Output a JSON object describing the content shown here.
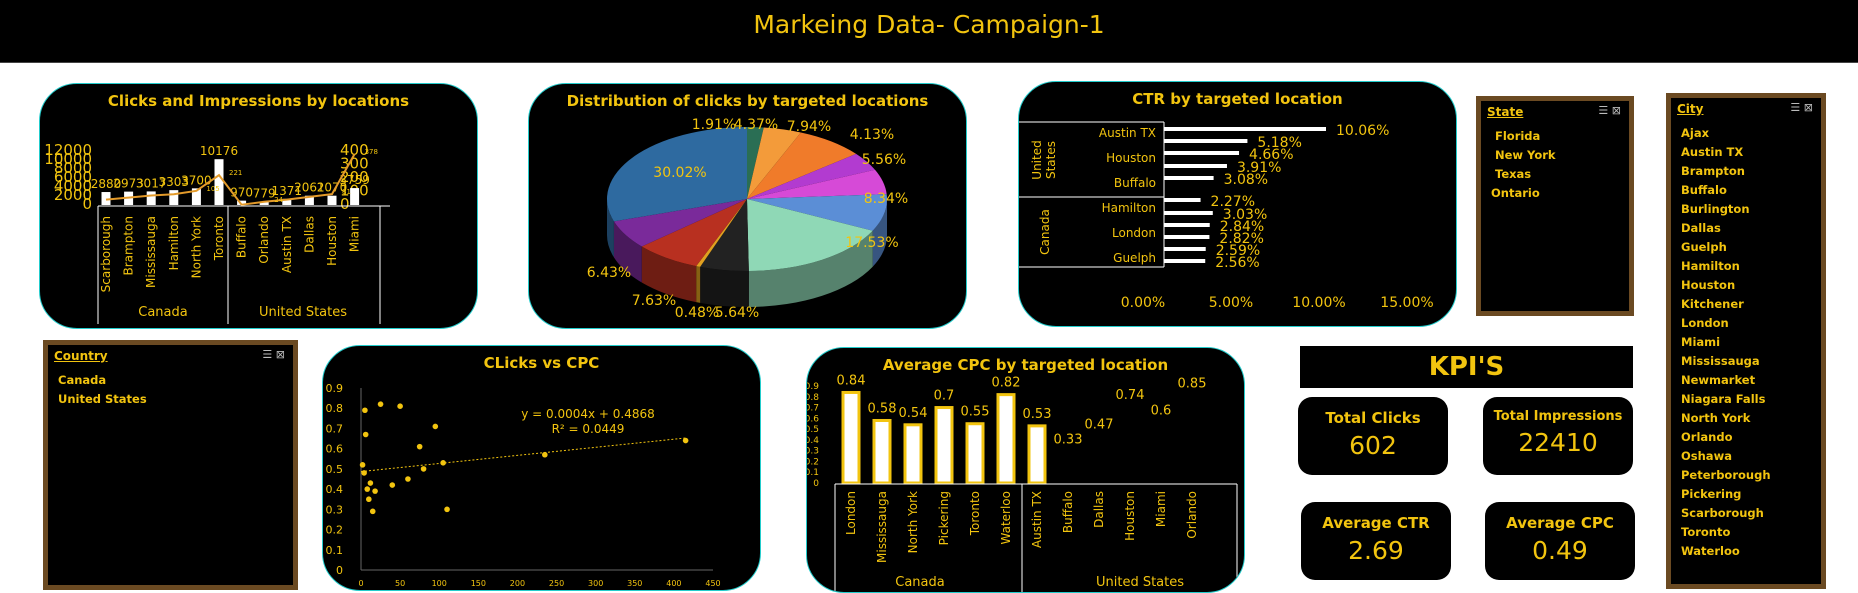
{
  "header": {
    "title": "Markeing Data- Campaign-1"
  },
  "colors": {
    "accent": "#f2c40f",
    "panel": "#000000",
    "border": "#22cccc",
    "slicer_border": "#6b4a22"
  },
  "chart1": {
    "title": "Clicks and Impressions by locations",
    "left_axis_ticks": [
      "12000",
      "10000",
      "8000",
      "6000",
      "4000",
      "2000",
      "0"
    ],
    "right_axis_ticks": [
      "400",
      "300",
      "200",
      "100",
      "0"
    ],
    "groups": [
      "Canada",
      "United States"
    ],
    "bar_labels": [
      "2880",
      "2973",
      "3017",
      "3303",
      "3700",
      "10176",
      "970",
      "779",
      "1371",
      "2061",
      "2070",
      "3759"
    ],
    "line_labels": [
      "221",
      "378",
      "105",
      "81",
      "24"
    ]
  },
  "chart2": {
    "title": "Distribution of clicks by targeted locations",
    "labels": [
      "1.91%",
      "4.37%",
      "7.94%",
      "4.13%",
      "5.56%",
      "8.34%",
      "17.53%",
      "5.64%",
      "0.48%",
      "7.63%",
      "6.43%",
      "30.02%"
    ]
  },
  "chart3": {
    "title": "CTR by targeted location",
    "groups": [
      "United States",
      "Canada"
    ],
    "x_ticks": [
      "0.00%",
      "5.00%",
      "10.00%",
      "15.00%"
    ],
    "data_labels": [
      "10.06%",
      "5.18%",
      "4.66%",
      "3.91%",
      "3.08%",
      "2.27%",
      "3.03%",
      "2.84%",
      "2.82%",
      "2.59%",
      "2.56%"
    ]
  },
  "chart4": {
    "title": "CLicks vs CPC",
    "y_ticks": [
      "0.9",
      "0.8",
      "0.7",
      "0.6",
      "0.5",
      "0.4",
      "0.3",
      "0.2",
      "0.1",
      "0"
    ],
    "x_ticks": [
      "0",
      "50",
      "100",
      "150",
      "200",
      "250",
      "300",
      "350",
      "400",
      "450"
    ],
    "equation": "y = 0.0004x + 0.4868",
    "r_squared": "R² = 0.0449"
  },
  "chart5": {
    "title": "Average CPC by targeted location",
    "y_ticks": [
      "0.9",
      "0.8",
      "0.7",
      "0.6",
      "0.5",
      "0.4",
      "0.3",
      "0.2",
      "0.1",
      "0"
    ],
    "groups": [
      "Canada",
      "United States"
    ],
    "data_labels": [
      "0.84",
      "0.58",
      "0.54",
      "0.7",
      "0.55",
      "0.82",
      "0.53",
      "0.33",
      "0.47",
      "0.74",
      "0.6",
      "0.85"
    ]
  },
  "chart_data": [
    {
      "type": "bar",
      "title": "Clicks and Impressions by locations",
      "categories": [
        "Scarborough",
        "Brampton",
        "Mississauga",
        "Hamilton",
        "North York",
        "Toronto",
        "Buffalo",
        "Orlando",
        "Austin TX",
        "Dallas",
        "Houston",
        "Miami"
      ],
      "groups": [
        {
          "name": "Canada",
          "count": 6
        },
        {
          "name": "United States",
          "count": 6
        }
      ],
      "series": [
        {
          "values": [
            2880,
            2973,
            3017,
            3303,
            3700,
            10176,
            970,
            779,
            1371,
            2061,
            2070,
            3759
          ],
          "axis": "left"
        },
        {
          "values": [
            40,
            55,
            70,
            80,
            105,
            221,
            2,
            24,
            40,
            60,
            81,
            378
          ],
          "axis": "right",
          "kind": "line"
        }
      ],
      "ylim_left": [
        0,
        12000
      ],
      "ylim_right": [
        0,
        400
      ]
    },
    {
      "type": "pie",
      "title": "Distribution of clicks by targeted locations",
      "values": [
        1.91,
        4.37,
        7.94,
        4.13,
        5.56,
        8.34,
        17.53,
        5.64,
        0.48,
        7.63,
        6.43,
        30.02
      ],
      "colors": [
        "#2a6e54",
        "#f39b3a",
        "#f07b2a",
        "#b23bd0",
        "#d64ad7",
        "#5b8ed6",
        "#8fd8b6",
        "#222222",
        "#e0a020",
        "#b83020",
        "#7a2a9a",
        "#2e6aa0"
      ]
    },
    {
      "type": "bar",
      "orientation": "horizontal",
      "title": "CTR by targeted location",
      "categories": [
        "Austin TX",
        "",
        "Houston",
        "",
        "Buffalo",
        "Hamilton",
        "",
        "London",
        "",
        "Guelph",
        ""
      ],
      "values": [
        10.06,
        5.18,
        4.66,
        3.91,
        3.08,
        2.27,
        3.03,
        2.84,
        2.82,
        2.59,
        2.56
      ],
      "groups": [
        {
          "name": "United States",
          "count": 5
        },
        {
          "name": "Canada",
          "count": 6
        }
      ],
      "xlim": [
        0,
        15
      ]
    },
    {
      "type": "scatter",
      "title": "CLicks vs CPC",
      "x": [
        2,
        4,
        5,
        6,
        8,
        10,
        12,
        15,
        18,
        25,
        40,
        50,
        60,
        75,
        80,
        95,
        105,
        110,
        235,
        415
      ],
      "y": [
        0.52,
        0.48,
        0.79,
        0.67,
        0.4,
        0.35,
        0.43,
        0.29,
        0.39,
        0.82,
        0.42,
        0.81,
        0.45,
        0.61,
        0.5,
        0.71,
        0.53,
        0.3,
        0.57,
        0.64
      ],
      "xlim": [
        0,
        450
      ],
      "ylim": [
        0,
        0.9
      ],
      "trendline": {
        "slope": 0.0004,
        "intercept": 0.4868
      }
    },
    {
      "type": "bar",
      "title": "Average CPC by targeted location",
      "categories": [
        "London",
        "Mississauga",
        "North York",
        "Pickering",
        "Toronto",
        "Waterloo",
        "Austin TX",
        "Buffalo",
        "Dallas",
        "Houston",
        "Miami",
        "Orlando"
      ],
      "values": [
        0.84,
        0.58,
        0.54,
        0.7,
        0.55,
        0.82,
        0.53,
        0.33,
        0.47,
        0.74,
        0.6,
        0.85
      ],
      "groups": [
        {
          "name": "Canada",
          "count": 6
        },
        {
          "name": "United States",
          "count": 6
        }
      ],
      "ylim": [
        0,
        0.9
      ]
    }
  ],
  "slicers": {
    "state": {
      "header": "State",
      "items": [
        "Florida",
        "New York",
        "Texas",
        "Ontario"
      ]
    },
    "city": {
      "header": "City",
      "items": [
        "Ajax",
        "Austin TX",
        "Brampton",
        "Buffalo",
        "Burlington",
        "Dallas",
        "Guelph",
        "Hamilton",
        "Houston",
        "Kitchener",
        "London",
        "Miami",
        "Mississauga",
        "Newmarket",
        "Niagara Falls",
        "North York",
        "Orlando",
        "Oshawa",
        "Peterborough",
        "Pickering",
        "Scarborough",
        "Toronto",
        "Waterloo"
      ]
    },
    "country": {
      "header": "Country",
      "items": [
        "Canada",
        "United States"
      ]
    }
  },
  "kpis": {
    "heading": "KPI'S",
    "total_clicks": {
      "label": "Total Clicks",
      "value": "602"
    },
    "total_impressions": {
      "label": "Total Impressions",
      "value": "22410"
    },
    "average_ctr": {
      "label": "Average CTR",
      "value": "2.69"
    },
    "average_cpc": {
      "label": "Average CPC",
      "value": "0.49"
    }
  }
}
